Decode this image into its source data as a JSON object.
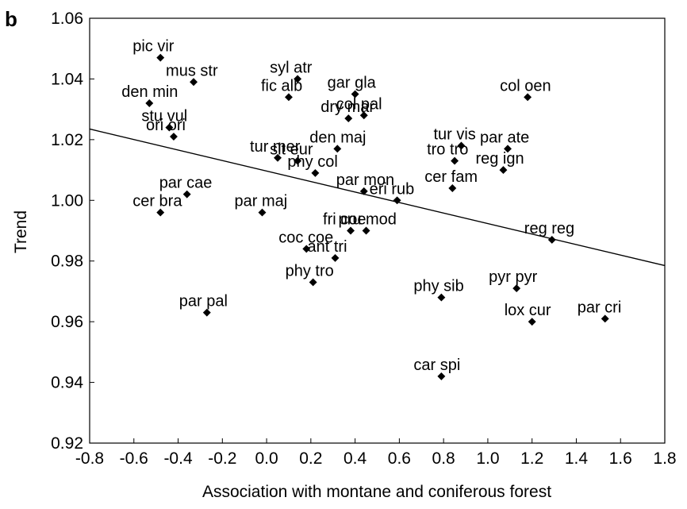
{
  "chart_data": {
    "type": "scatter",
    "panel_label": "b",
    "xlabel": "Association with montane and coniferous forest",
    "ylabel": "Trend",
    "xlim": [
      -0.8,
      1.8
    ],
    "ylim": [
      0.92,
      1.06
    ],
    "xticks": [
      "-0.8",
      "-0.6",
      "-0.4",
      "-0.2",
      "0.0",
      "0.2",
      "0.4",
      "0.6",
      "0.8",
      "1.0",
      "1.2",
      "1.4",
      "1.6",
      "1.8"
    ],
    "yticks": [
      "0.92",
      "0.94",
      "0.96",
      "0.98",
      "1.00",
      "1.02",
      "1.04",
      "1.06"
    ],
    "grid": false,
    "trend_line": {
      "x": [
        -0.8,
        1.8
      ],
      "y": [
        1.0235,
        0.9785
      ]
    },
    "points": [
      {
        "label": "pic vir",
        "x": -0.48,
        "y": 1.047
      },
      {
        "label": "mus str",
        "x": -0.33,
        "y": 1.039
      },
      {
        "label": "den min",
        "x": -0.53,
        "y": 1.032
      },
      {
        "label": "stu vul",
        "x": -0.44,
        "y": 1.024
      },
      {
        "label": "ori ori",
        "x": -0.42,
        "y": 1.021
      },
      {
        "label": "syl atr",
        "x": 0.14,
        "y": 1.04
      },
      {
        "label": "fic alb",
        "x": 0.1,
        "y": 1.034
      },
      {
        "label": "gar gla",
        "x": 0.4,
        "y": 1.035
      },
      {
        "label": "dry mar",
        "x": 0.37,
        "y": 1.027
      },
      {
        "label": "col pal",
        "x": 0.44,
        "y": 1.028
      },
      {
        "label": "col oen",
        "x": 1.18,
        "y": 1.034
      },
      {
        "label": "den maj",
        "x": 0.32,
        "y": 1.017
      },
      {
        "label": "tur mer",
        "x": 0.05,
        "y": 1.014
      },
      {
        "label": "sit eur",
        "x": 0.14,
        "y": 1.013
      },
      {
        "label": "phy col",
        "x": 0.22,
        "y": 1.009
      },
      {
        "label": "tur vis",
        "x": 0.88,
        "y": 1.018
      },
      {
        "label": "tro tro",
        "x": 0.85,
        "y": 1.013
      },
      {
        "label": "par ate",
        "x": 1.09,
        "y": 1.017
      },
      {
        "label": "reg ign",
        "x": 1.07,
        "y": 1.01
      },
      {
        "label": "cer fam",
        "x": 0.84,
        "y": 1.004
      },
      {
        "label": "par cae",
        "x": -0.36,
        "y": 1.002
      },
      {
        "label": "cer bra",
        "x": -0.48,
        "y": 0.996
      },
      {
        "label": "par maj",
        "x": -0.02,
        "y": 0.996
      },
      {
        "label": "par mon",
        "x": 0.44,
        "y": 1.003
      },
      {
        "label": "eri rub",
        "x": 0.59,
        "y": 1.0
      },
      {
        "label": "fri coe",
        "x": 0.38,
        "y": 0.99
      },
      {
        "label": "pru mod",
        "x": 0.45,
        "y": 0.99
      },
      {
        "label": "coc coe",
        "x": 0.18,
        "y": 0.984
      },
      {
        "label": "ant tri",
        "x": 0.31,
        "y": 0.981
      },
      {
        "label": "reg reg",
        "x": 1.29,
        "y": 0.987
      },
      {
        "label": "phy tro",
        "x": 0.21,
        "y": 0.973
      },
      {
        "label": "phy sib",
        "x": 0.79,
        "y": 0.968
      },
      {
        "label": "pyr pyr",
        "x": 1.13,
        "y": 0.971
      },
      {
        "label": "par pal",
        "x": -0.27,
        "y": 0.963
      },
      {
        "label": "lox cur",
        "x": 1.2,
        "y": 0.96
      },
      {
        "label": "par cri",
        "x": 1.53,
        "y": 0.961
      },
      {
        "label": "car spi",
        "x": 0.79,
        "y": 0.942
      }
    ]
  }
}
